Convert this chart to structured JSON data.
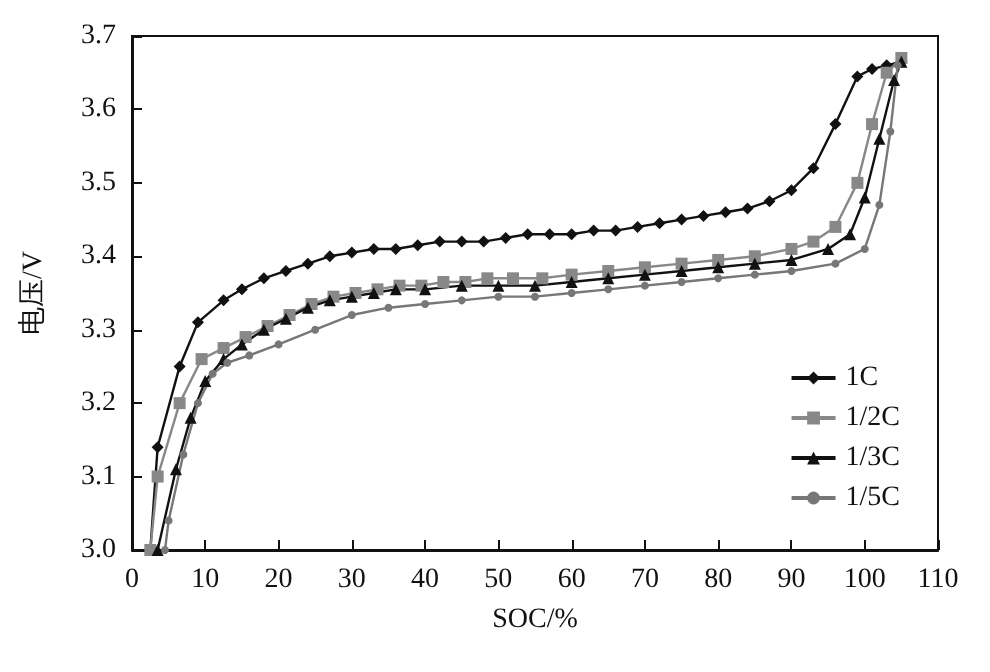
{
  "chart_data": {
    "type": "line",
    "xlabel": "SOC/%",
    "ylabel": "电压/V",
    "xlim": [
      0,
      110
    ],
    "xticks": [
      0,
      10,
      20,
      30,
      40,
      50,
      60,
      70,
      80,
      90,
      100,
      110
    ],
    "ylim": [
      3.0,
      3.7
    ],
    "yticks": [
      {
        "value": 3.0,
        "label": "3.0"
      },
      3.1,
      3.2,
      3.3,
      3.4,
      3.5,
      3.6,
      3.7
    ],
    "grid": false,
    "legend": "bottom right",
    "series": [
      {
        "name": "1C",
        "color": "#111111",
        "marker": "diamond",
        "x": [
          2.5,
          3.5,
          6.5,
          9,
          12.5,
          15,
          18,
          21,
          24,
          27,
          30,
          33,
          36,
          39,
          42,
          45,
          48,
          51,
          54,
          57,
          60,
          63,
          66,
          69,
          72,
          75,
          78,
          81,
          84,
          87,
          90,
          93,
          96,
          99,
          101,
          103,
          105
        ],
        "values": [
          3.0,
          3.14,
          3.25,
          3.31,
          3.34,
          3.355,
          3.37,
          3.38,
          3.39,
          3.4,
          3.405,
          3.41,
          3.41,
          3.415,
          3.42,
          3.42,
          3.42,
          3.425,
          3.43,
          3.43,
          3.43,
          3.435,
          3.435,
          3.44,
          3.445,
          3.45,
          3.455,
          3.46,
          3.465,
          3.475,
          3.49,
          3.52,
          3.58,
          3.645,
          3.655,
          3.66,
          3.665
        ]
      },
      {
        "name": "1/2C",
        "color": "#888888",
        "marker": "square",
        "x": [
          2.5,
          3.5,
          6.5,
          9.5,
          12.5,
          15.5,
          18.5,
          21.5,
          24.5,
          27.5,
          30.5,
          33.5,
          36.5,
          39.5,
          42.5,
          45.5,
          48.5,
          52,
          56,
          60,
          65,
          70,
          75,
          80,
          85,
          90,
          93,
          96,
          99,
          101,
          103,
          105
        ],
        "values": [
          3.0,
          3.1,
          3.2,
          3.26,
          3.275,
          3.29,
          3.305,
          3.32,
          3.335,
          3.345,
          3.35,
          3.355,
          3.36,
          3.36,
          3.365,
          3.365,
          3.37,
          3.37,
          3.37,
          3.375,
          3.38,
          3.385,
          3.39,
          3.395,
          3.4,
          3.41,
          3.42,
          3.44,
          3.5,
          3.58,
          3.65,
          3.67
        ]
      },
      {
        "name": "1/3C",
        "color": "#111111",
        "marker": "triangle",
        "x": [
          3.5,
          6,
          8,
          10,
          12.5,
          15,
          18,
          21,
          24,
          27,
          30,
          33,
          36,
          40,
          45,
          50,
          55,
          60,
          65,
          70,
          75,
          80,
          85,
          90,
          95,
          98,
          100,
          102,
          104,
          105
        ],
        "values": [
          3.0,
          3.11,
          3.18,
          3.23,
          3.26,
          3.28,
          3.3,
          3.315,
          3.33,
          3.34,
          3.345,
          3.35,
          3.355,
          3.355,
          3.36,
          3.36,
          3.36,
          3.365,
          3.37,
          3.375,
          3.38,
          3.385,
          3.39,
          3.395,
          3.41,
          3.43,
          3.48,
          3.56,
          3.64,
          3.665
        ]
      },
      {
        "name": "1/5C",
        "color": "#777777",
        "marker": "circle",
        "x": [
          4.5,
          5,
          7,
          9,
          11,
          13,
          16,
          20,
          25,
          30,
          35,
          40,
          45,
          50,
          55,
          60,
          65,
          70,
          75,
          80,
          85,
          90,
          96,
          100,
          102,
          103.5,
          104.5
        ],
        "values": [
          3.0,
          3.04,
          3.13,
          3.2,
          3.24,
          3.255,
          3.265,
          3.28,
          3.3,
          3.32,
          3.33,
          3.335,
          3.34,
          3.345,
          3.345,
          3.35,
          3.355,
          3.36,
          3.365,
          3.37,
          3.375,
          3.38,
          3.39,
          3.41,
          3.47,
          3.57,
          3.66
        ]
      }
    ]
  }
}
